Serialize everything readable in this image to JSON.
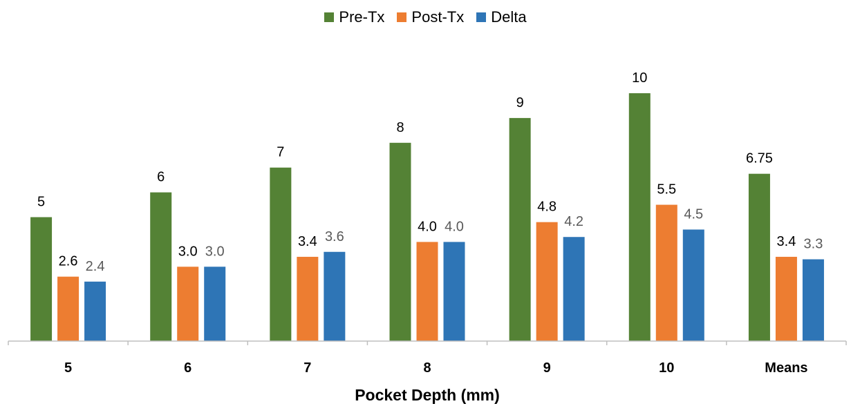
{
  "chart_data": {
    "type": "bar",
    "categories": [
      "5",
      "6",
      "7",
      "8",
      "9",
      "10",
      "Means"
    ],
    "series": [
      {
        "name": "Pre-Tx",
        "color": "#548235",
        "values": [
          5,
          6,
          7,
          8,
          9,
          10,
          6.75
        ],
        "labels": [
          "5",
          "6",
          "7",
          "8",
          "9",
          "10",
          "6.75"
        ]
      },
      {
        "name": "Post-Tx",
        "color": "#ED7D31",
        "values": [
          2.6,
          3.0,
          3.4,
          4.0,
          4.8,
          5.5,
          3.4
        ],
        "labels": [
          "2.6",
          "3.0",
          "3.4",
          "4.0",
          "4.8",
          "5.5",
          "3.4"
        ]
      },
      {
        "name": "Delta",
        "color": "#2E75B6",
        "values": [
          2.4,
          3.0,
          3.6,
          4.0,
          4.2,
          4.5,
          3.3
        ],
        "labels": [
          "2.4",
          "3.0",
          "3.6",
          "4.0",
          "4.2",
          "4.5",
          "3.3"
        ]
      }
    ],
    "xlabel": "Pocket Depth (mm)",
    "ylabel": "",
    "ylim": [
      0,
      10
    ],
    "grid": false,
    "legend_position": "top-center"
  }
}
